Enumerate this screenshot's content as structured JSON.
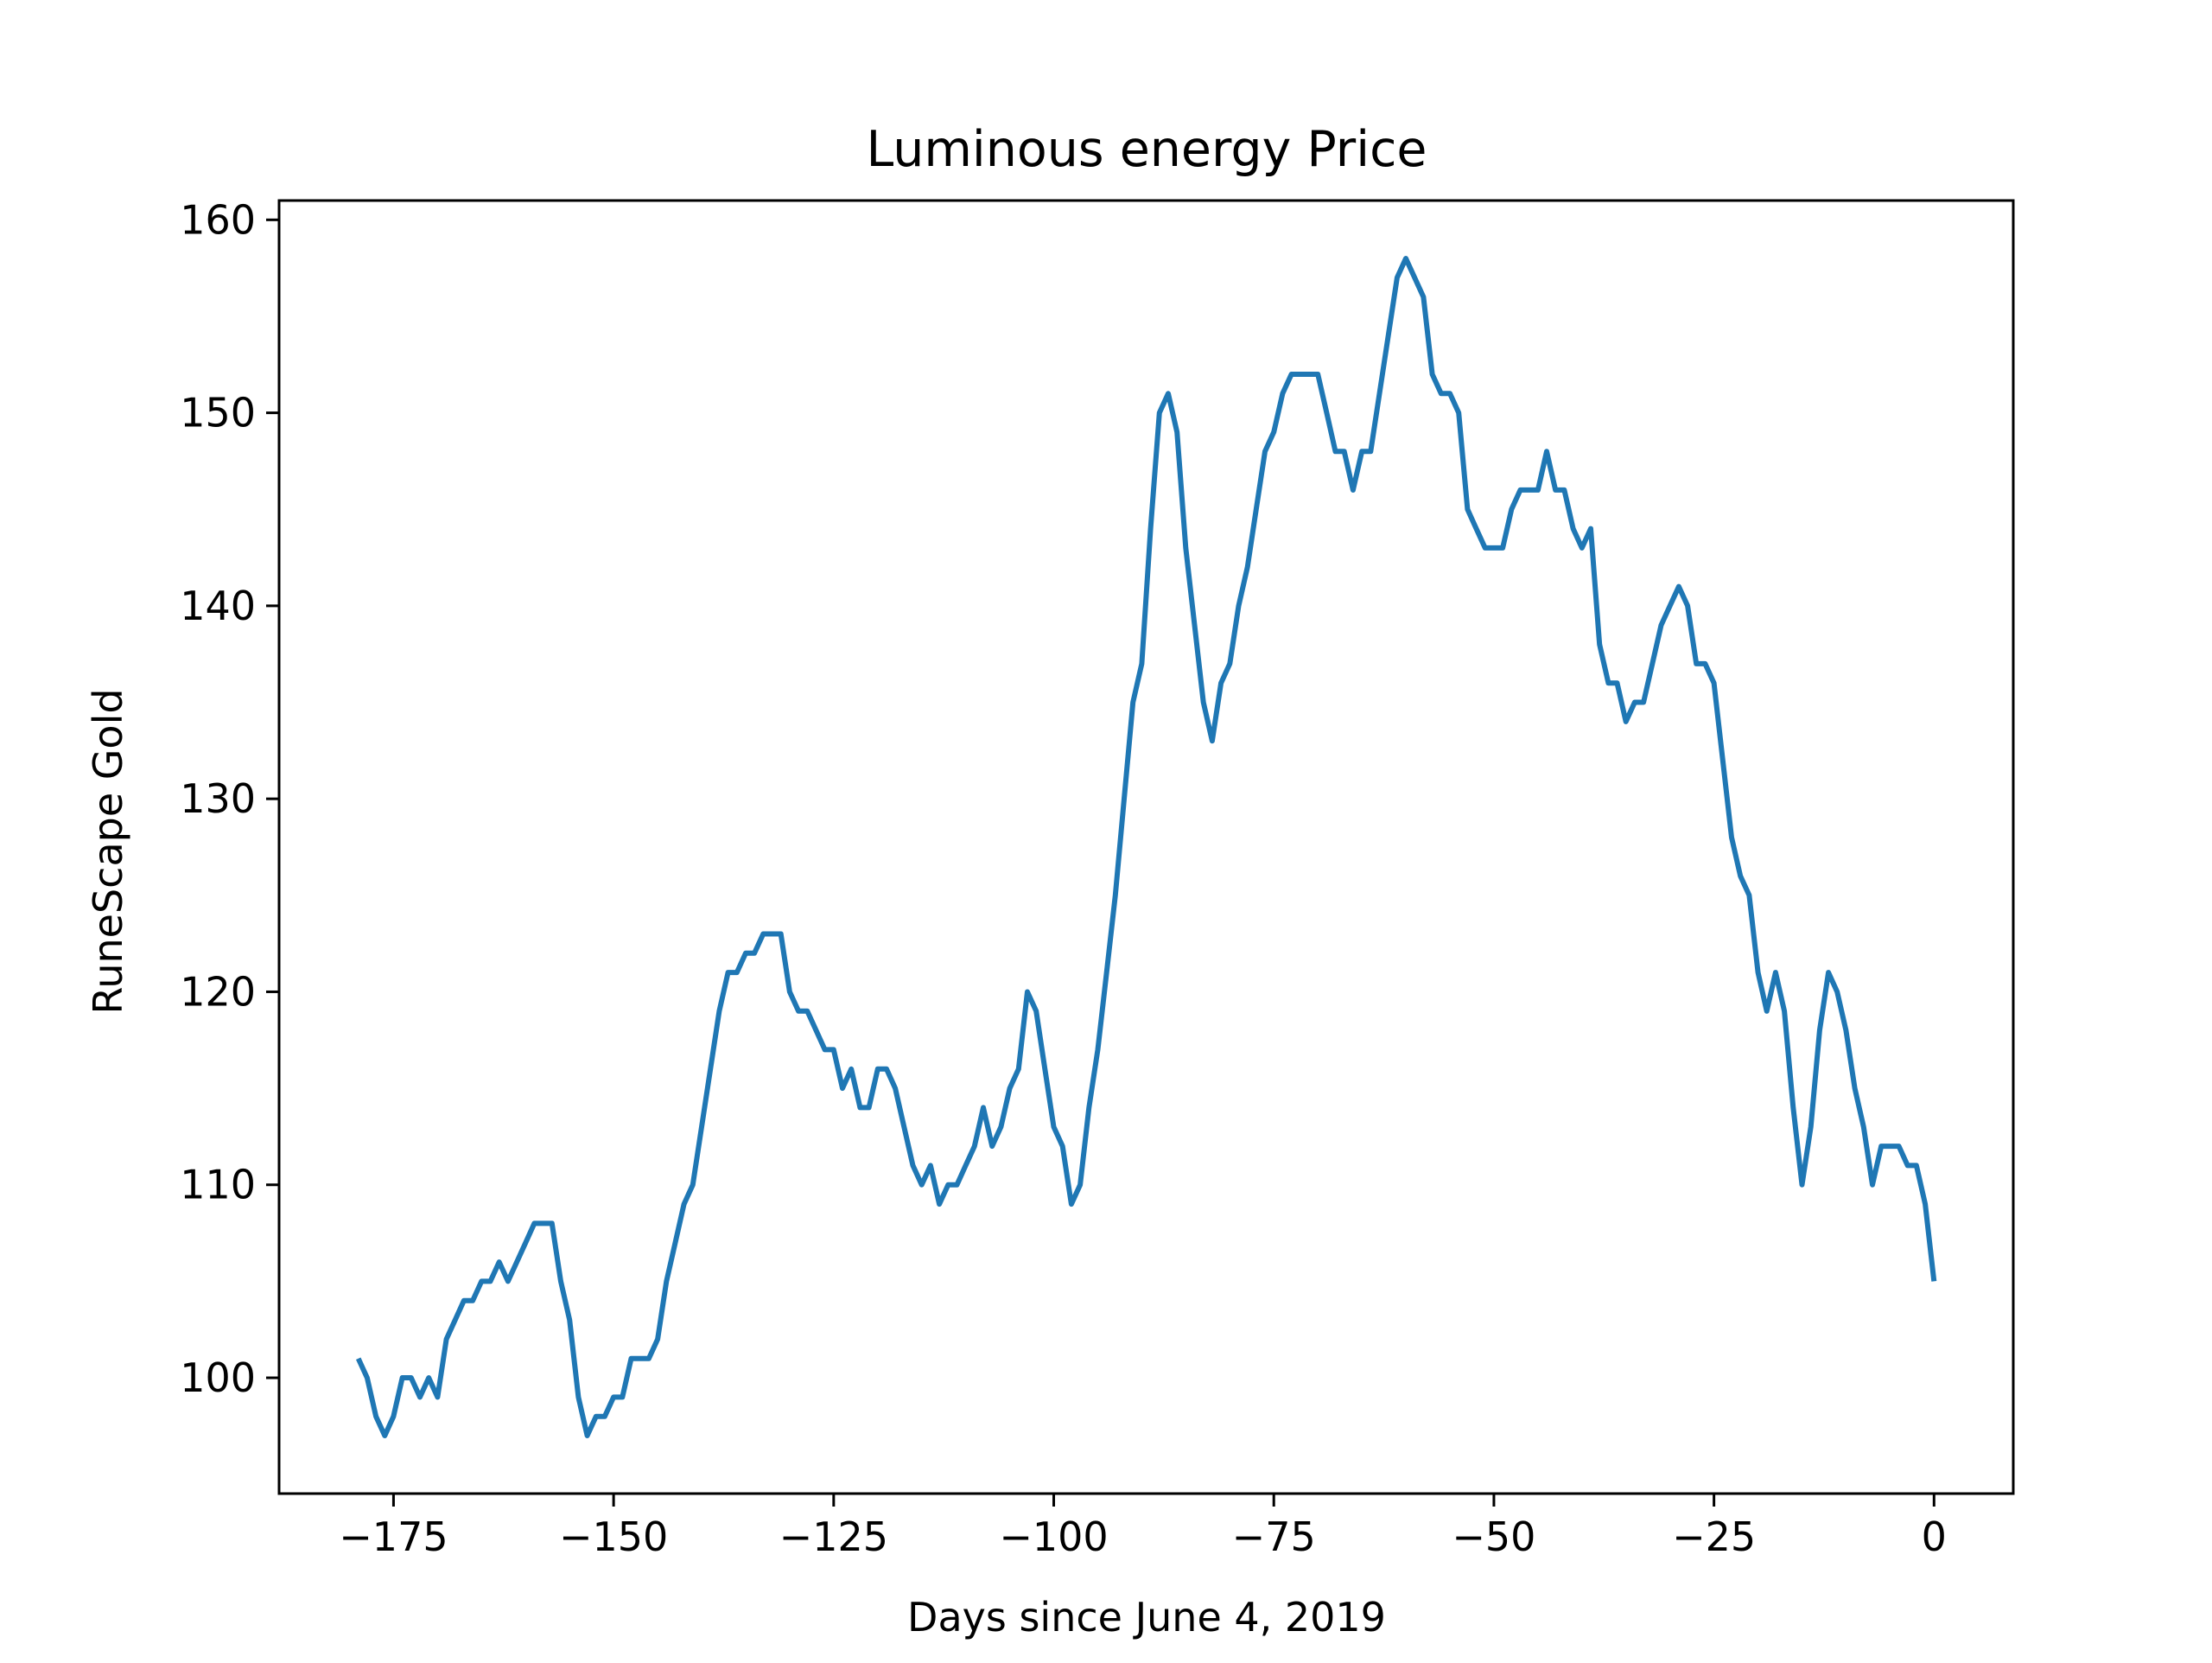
{
  "chart_data": {
    "type": "line",
    "title": "Luminous energy Price",
    "xlabel": "Days since June 4, 2019",
    "ylabel": "RuneScape Gold",
    "xlim": [
      -188,
      9
    ],
    "ylim": [
      94,
      161
    ],
    "xticks": [
      -175,
      -150,
      -125,
      -100,
      -75,
      -50,
      -25,
      0
    ],
    "xtick_labels": [
      "−175",
      "−150",
      "−125",
      "−100",
      "−75",
      "−50",
      "−25",
      "0"
    ],
    "yticks": [
      100,
      110,
      120,
      130,
      140,
      150,
      160
    ],
    "ytick_labels": [
      "100",
      "110",
      "120",
      "130",
      "140",
      "150",
      "160"
    ],
    "grid": false,
    "series": [
      {
        "color": "#1f77b4",
        "points": [
          [
            -179,
            101
          ],
          [
            -178,
            100
          ],
          [
            -177,
            98
          ],
          [
            -176,
            97
          ],
          [
            -175,
            98
          ],
          [
            -174,
            100
          ],
          [
            -173,
            100
          ],
          [
            -172,
            99
          ],
          [
            -171,
            100
          ],
          [
            -170,
            99
          ],
          [
            -169,
            102
          ],
          [
            -168,
            103
          ],
          [
            -167,
            104
          ],
          [
            -166,
            104
          ],
          [
            -165,
            105
          ],
          [
            -164,
            105
          ],
          [
            -163,
            106
          ],
          [
            -162,
            105
          ],
          [
            -161,
            106
          ],
          [
            -160,
            107
          ],
          [
            -159,
            108
          ],
          [
            -158,
            108
          ],
          [
            -157,
            108
          ],
          [
            -156,
            105
          ],
          [
            -155,
            103
          ],
          [
            -154,
            99
          ],
          [
            -153,
            97
          ],
          [
            -152,
            98
          ],
          [
            -151,
            98
          ],
          [
            -150,
            99
          ],
          [
            -149,
            99
          ],
          [
            -148,
            101
          ],
          [
            -147,
            101
          ],
          [
            -146,
            101
          ],
          [
            -145,
            102
          ],
          [
            -144,
            105
          ],
          [
            -143,
            107
          ],
          [
            -142,
            109
          ],
          [
            -141,
            110
          ],
          [
            -140,
            113
          ],
          [
            -139,
            116
          ],
          [
            -138,
            119
          ],
          [
            -137,
            121
          ],
          [
            -136,
            121
          ],
          [
            -135,
            122
          ],
          [
            -134,
            122
          ],
          [
            -133,
            123
          ],
          [
            -132,
            123
          ],
          [
            -131,
            123
          ],
          [
            -130,
            120
          ],
          [
            -129,
            119
          ],
          [
            -128,
            119
          ],
          [
            -127,
            118
          ],
          [
            -126,
            117
          ],
          [
            -125,
            117
          ],
          [
            -124,
            115
          ],
          [
            -123,
            116
          ],
          [
            -122,
            114
          ],
          [
            -121,
            114
          ],
          [
            -120,
            116
          ],
          [
            -119,
            116
          ],
          [
            -118,
            115
          ],
          [
            -117,
            113
          ],
          [
            -116,
            111
          ],
          [
            -115,
            110
          ],
          [
            -114,
            111
          ],
          [
            -113,
            109
          ],
          [
            -112,
            110
          ],
          [
            -111,
            110
          ],
          [
            -110,
            111
          ],
          [
            -109,
            112
          ],
          [
            -108,
            114
          ],
          [
            -107,
            112
          ],
          [
            -106,
            113
          ],
          [
            -105,
            115
          ],
          [
            -104,
            116
          ],
          [
            -103,
            120
          ],
          [
            -102,
            119
          ],
          [
            -101,
            116
          ],
          [
            -100,
            113
          ],
          [
            -99,
            112
          ],
          [
            -98,
            109
          ],
          [
            -97,
            110
          ],
          [
            -96,
            114
          ],
          [
            -95,
            117
          ],
          [
            -94,
            121
          ],
          [
            -93,
            125
          ],
          [
            -92,
            130
          ],
          [
            -91,
            135
          ],
          [
            -90,
            137
          ],
          [
            -89,
            144
          ],
          [
            -88,
            150
          ],
          [
            -87,
            151
          ],
          [
            -86,
            149
          ],
          [
            -85,
            143
          ],
          [
            -84,
            139
          ],
          [
            -83,
            135
          ],
          [
            -82,
            133
          ],
          [
            -81,
            136
          ],
          [
            -80,
            137
          ],
          [
            -79,
            140
          ],
          [
            -78,
            142
          ],
          [
            -77,
            145
          ],
          [
            -76,
            148
          ],
          [
            -75,
            149
          ],
          [
            -74,
            151
          ],
          [
            -73,
            152
          ],
          [
            -72,
            152
          ],
          [
            -71,
            152
          ],
          [
            -70,
            152
          ],
          [
            -69,
            150
          ],
          [
            -68,
            148
          ],
          [
            -67,
            148
          ],
          [
            -66,
            146
          ],
          [
            -65,
            148
          ],
          [
            -64,
            148
          ],
          [
            -63,
            151
          ],
          [
            -62,
            154
          ],
          [
            -61,
            157
          ],
          [
            -60,
            158
          ],
          [
            -59,
            157
          ],
          [
            -58,
            156
          ],
          [
            -57,
            152
          ],
          [
            -56,
            151
          ],
          [
            -55,
            151
          ],
          [
            -54,
            150
          ],
          [
            -53,
            145
          ],
          [
            -52,
            144
          ],
          [
            -51,
            143
          ],
          [
            -50,
            143
          ],
          [
            -49,
            143
          ],
          [
            -48,
            145
          ],
          [
            -47,
            146
          ],
          [
            -46,
            146
          ],
          [
            -45,
            146
          ],
          [
            -44,
            148
          ],
          [
            -43,
            146
          ],
          [
            -42,
            146
          ],
          [
            -41,
            144
          ],
          [
            -40,
            143
          ],
          [
            -39,
            144
          ],
          [
            -38,
            138
          ],
          [
            -37,
            136
          ],
          [
            -36,
            136
          ],
          [
            -35,
            134
          ],
          [
            -34,
            135
          ],
          [
            -33,
            135
          ],
          [
            -32,
            137
          ],
          [
            -31,
            139
          ],
          [
            -30,
            140
          ],
          [
            -29,
            141
          ],
          [
            -28,
            140
          ],
          [
            -27,
            137
          ],
          [
            -26,
            137
          ],
          [
            -25,
            136
          ],
          [
            -24,
            132
          ],
          [
            -23,
            128
          ],
          [
            -22,
            126
          ],
          [
            -21,
            125
          ],
          [
            -20,
            121
          ],
          [
            -19,
            119
          ],
          [
            -18,
            121
          ],
          [
            -17,
            119
          ],
          [
            -16,
            114
          ],
          [
            -15,
            110
          ],
          [
            -14,
            113
          ],
          [
            -13,
            118
          ],
          [
            -12,
            121
          ],
          [
            -11,
            120
          ],
          [
            -10,
            118
          ],
          [
            -9,
            115
          ],
          [
            -8,
            113
          ],
          [
            -7,
            110
          ],
          [
            -6,
            112
          ],
          [
            -5,
            112
          ],
          [
            -4,
            112
          ],
          [
            -3,
            111
          ],
          [
            -2,
            111
          ],
          [
            -1,
            109
          ],
          [
            0,
            105
          ]
        ]
      }
    ]
  }
}
